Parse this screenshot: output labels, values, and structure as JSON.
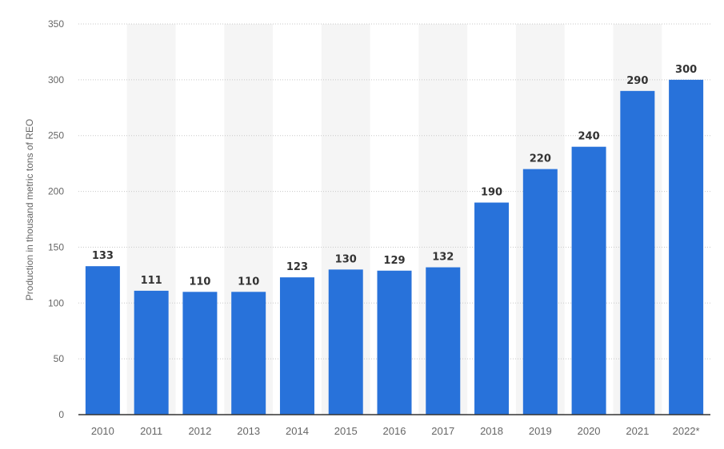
{
  "chart_data": {
    "type": "bar",
    "categories": [
      "2010",
      "2011",
      "2012",
      "2013",
      "2014",
      "2015",
      "2016",
      "2017",
      "2018",
      "2019",
      "2020",
      "2021",
      "2022*"
    ],
    "series": [
      {
        "values": [
          133,
          111,
          110,
          110,
          123,
          130,
          129,
          132,
          190,
          220,
          240,
          290,
          300
        ]
      }
    ],
    "data_labels": [
      "133",
      "111",
      "110",
      "110",
      "123",
      "130",
      "129",
      "132",
      "190",
      "220",
      "240",
      "290",
      "300"
    ],
    "xlabel": "",
    "ylabel": "Production in thousand metric tons of REO",
    "ylim": [
      0,
      350
    ],
    "yticks": [
      0,
      50,
      100,
      150,
      200,
      250,
      300,
      350
    ],
    "ytick_labels": [
      "0",
      "50",
      "100",
      "150",
      "200",
      "250",
      "300",
      "350"
    ],
    "grid": true,
    "legend": "none",
    "colors": {
      "bar": "#2872DA",
      "band": "#F5F5F5",
      "grid": "#C8C8C8",
      "axis": "#333333"
    }
  }
}
